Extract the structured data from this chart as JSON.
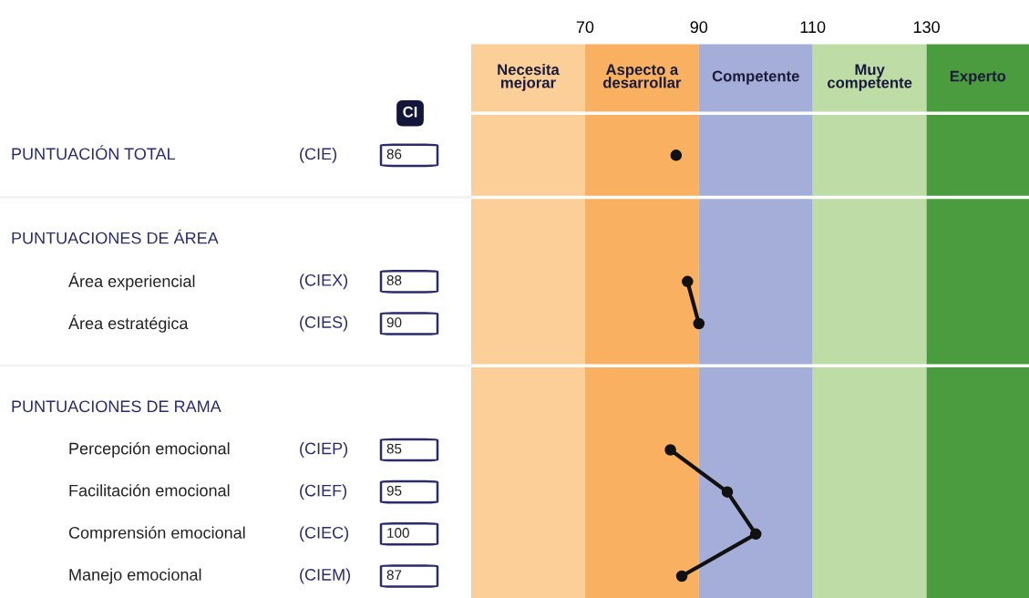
{
  "chart_data": {
    "type": "line",
    "orientation": "horizontal",
    "categories": [
      null,
      null,
      null,
      "Área experiencial",
      "Área estratégica",
      null,
      null,
      "Percepción emocional",
      "Facilitación emocional",
      "Comprensión emocional",
      "Manejo emocional"
    ],
    "series": [
      {
        "color": "#111111",
        "axis": "x2",
        "values": [
          86,
          null,
          null,
          null,
          null,
          null,
          null,
          null,
          null,
          null,
          null
        ]
      },
      {
        "color": "#111111",
        "axis": "x2",
        "values": [
          null,
          null,
          null,
          88,
          90,
          null,
          null,
          null,
          null,
          null,
          null
        ]
      },
      {
        "color": "#111111",
        "axis": "x2",
        "values": [
          null,
          null,
          null,
          null,
          null,
          null,
          null,
          85,
          95,
          100,
          87
        ]
      }
    ],
    "x2lim": [
      50,
      148
    ],
    "x2ticks": [
      70,
      90,
      110,
      130
    ],
    "bands": [
      {
        "axis": "x2",
        "from": 50,
        "to": 70,
        "label": "Necesita\nmejorar",
        "color": "#fbcf97"
      },
      {
        "axis": "x2",
        "from": 70,
        "to": 90,
        "label": "Aspecto a\ndesarrollar",
        "color": "#f9b060"
      },
      {
        "axis": "x2",
        "from": 90,
        "to": 110,
        "label": "Competente",
        "color": "#a4aed8"
      },
      {
        "axis": "x2",
        "from": 110,
        "to": 130,
        "label": "Muy\ncompetente",
        "color": "#bedca5"
      },
      {
        "axis": "x2",
        "from": 130,
        "to": 148,
        "label": "Experto",
        "color": "#4a9c3e"
      }
    ],
    "annotations": [
      "CI",
      "PUNTUACIÓN TOTAL",
      "PUNTUACIONES DE ÁREA",
      "PUNTUACIONES DE RAMA",
      "(CIE)",
      "(CIEX)",
      "(CIES)",
      "(CIEP)",
      "(CIEF)",
      "(CIEC)",
      "(CIEM)",
      "86",
      "88",
      "90",
      "85",
      "95",
      "100",
      "87"
    ],
    "marker": "circle",
    "line_style": "solid",
    "legend": false
  }
}
